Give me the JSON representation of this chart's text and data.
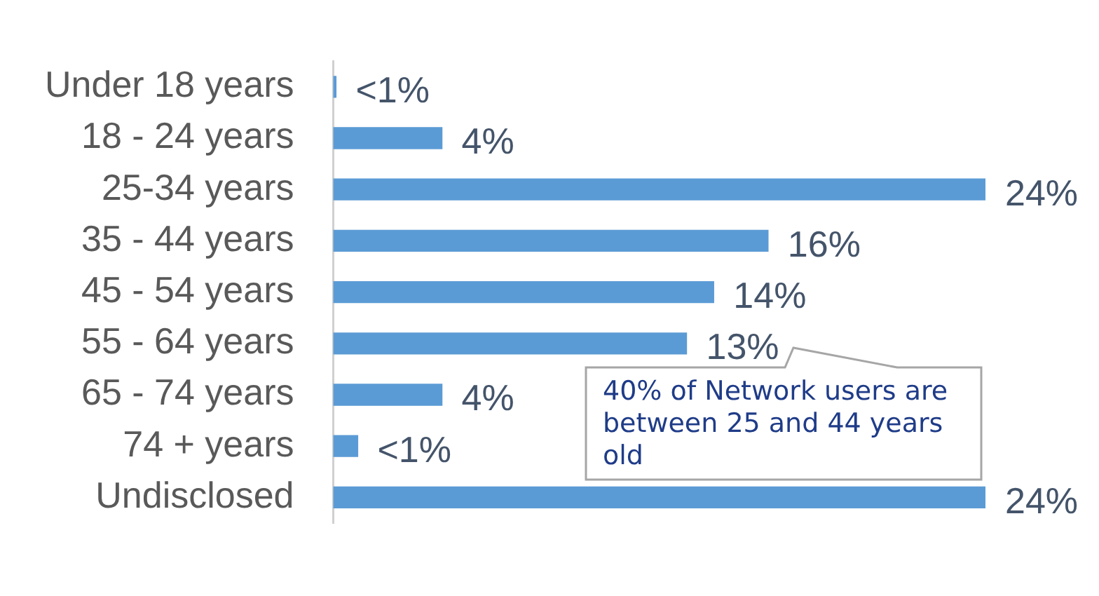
{
  "chart_data": {
    "type": "bar",
    "orientation": "horizontal",
    "categories": [
      "Under 18 years",
      "18 - 24 years",
      "25-34 years",
      "35 - 44 years",
      "45 - 54 years",
      "55 - 64 years",
      "65 - 74 years",
      "74 + years",
      "Undisclosed"
    ],
    "values": [
      0.1,
      4,
      24,
      16,
      14,
      13,
      4,
      0.9,
      24
    ],
    "value_labels": [
      "<1%",
      "4%",
      "24%",
      "16%",
      "14%",
      "13%",
      "4%",
      "<1%",
      "24%"
    ],
    "color": "#5b9bd5",
    "tick_labels": "y",
    "annotations": [
      "40% of Network users are between 25 and 44 years old"
    ]
  }
}
